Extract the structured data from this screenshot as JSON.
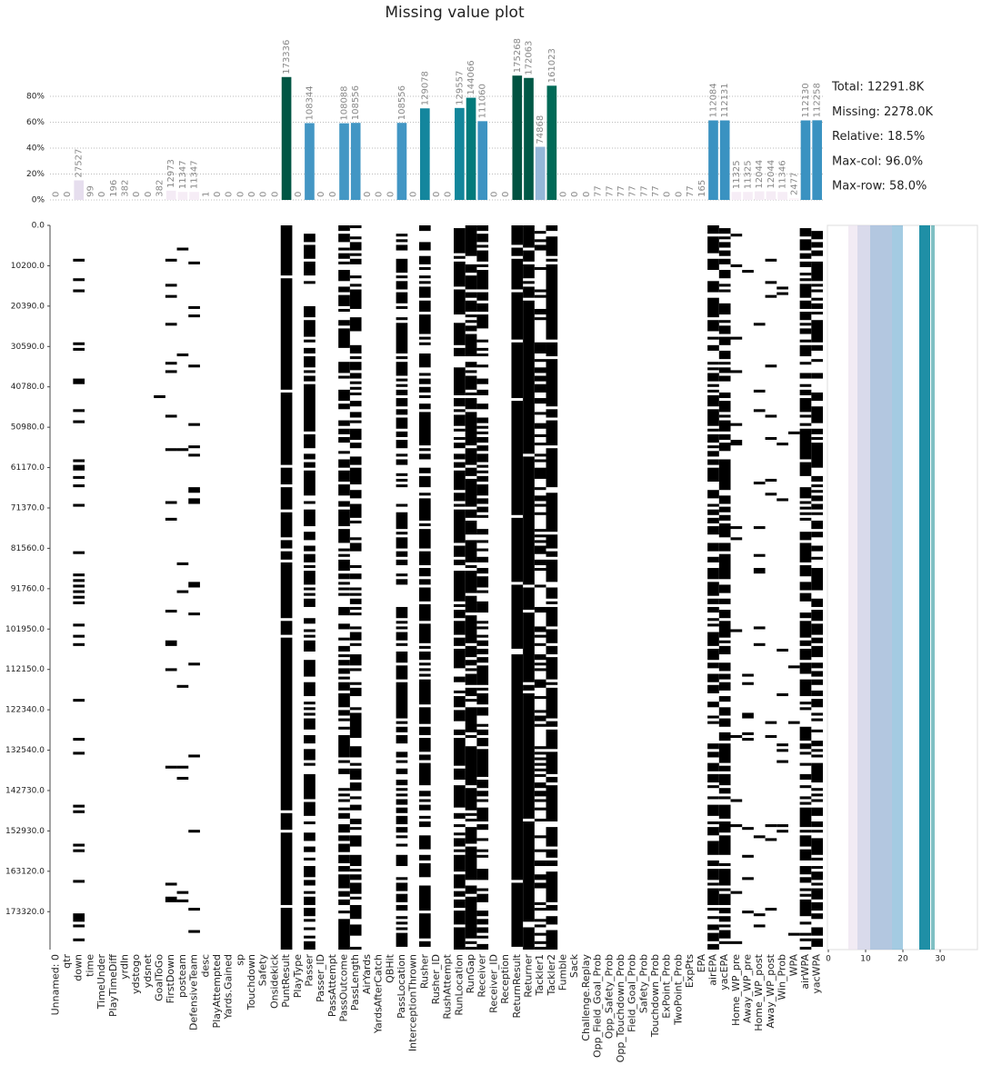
{
  "chart_data": {
    "type": "bar",
    "title": "Missing value plot",
    "categories": [
      "Unnamed: 0",
      "qtr",
      "down",
      "time",
      "TimeUnder",
      "PlayTimeDiff",
      "yrdln",
      "ydstogo",
      "ydsnet",
      "GoalToGo",
      "FirstDown",
      "posteam",
      "DefensiveTeam",
      "desc",
      "PlayAttempted",
      "Yards.Gained",
      "sp",
      "Touchdown",
      "Safety",
      "Onsidekick",
      "PuntResult",
      "PlayType",
      "Passer",
      "Passer_ID",
      "PassAttempt",
      "PassOutcome",
      "PassLength",
      "AirYards",
      "YardsAfterCatch",
      "QBHit",
      "PassLocation",
      "InterceptionThrown",
      "Rusher",
      "Rusher_ID",
      "RushAttempt",
      "RunLocation",
      "RunGap",
      "Receiver",
      "Receiver_ID",
      "Reception",
      "ReturnResult",
      "Returner",
      "Tackler1",
      "Tackler2",
      "Fumble",
      "Sack",
      "Challenge.Replay",
      "Opp_Field_Goal_Prob",
      "Opp_Safety_Prob",
      "Opp_Touchdown_Prob",
      "Field_Goal_Prob",
      "Safety_Prob",
      "Touchdown_Prob",
      "ExPoint_Prob",
      "TwoPoint_Prob",
      "ExpPts",
      "EPA",
      "airEPA",
      "yacEPA",
      "Home_WP_pre",
      "Away_WP_pre",
      "Home_WP_post",
      "Away_WP_post",
      "Win_Prob",
      "WPA",
      "airWPA",
      "yacWPA"
    ],
    "values": [
      0,
      0,
      15.1,
      0.1,
      0,
      0.1,
      0.2,
      0,
      0,
      0.2,
      7.1,
      6.2,
      6.2,
      0,
      0,
      0,
      0,
      0,
      0,
      0,
      94.9,
      0,
      59.3,
      0,
      0,
      59.2,
      59.5,
      0,
      0,
      0,
      59.5,
      0,
      70.7,
      0,
      0,
      71.0,
      78.9,
      60.8,
      0,
      0,
      96.0,
      94.2,
      41.0,
      88.2,
      0,
      0,
      0,
      0,
      0,
      0,
      0,
      0,
      0,
      0,
      0,
      0,
      0.1,
      61.4,
      61.4,
      6.2,
      6.2,
      6.6,
      6.6,
      6.2,
      1.4,
      61.4,
      61.5
    ],
    "value_labels": [
      "0",
      "0",
      "27527",
      "99",
      "0",
      "196",
      "382",
      "0",
      "0",
      "382",
      "12973",
      "11347",
      "11347",
      "1",
      "0",
      "0",
      "0",
      "0",
      "0",
      "0",
      "173336",
      "0",
      "108344",
      "0",
      "0",
      "108088",
      "108556",
      "0",
      "0",
      "0",
      "108556",
      "0",
      "129078",
      "0",
      "0",
      "129557",
      "144066",
      "111060",
      "0",
      "0",
      "175268",
      "172063",
      "74868",
      "161023",
      "0",
      "0",
      "0",
      "77",
      "77",
      "77",
      "77",
      "77",
      "77",
      "0",
      "0",
      "77",
      "165",
      "112084",
      "112131",
      "11325",
      "11325",
      "12044",
      "12044",
      "11346",
      "2477",
      "112130",
      "112258"
    ],
    "color_scale": [
      "#fff7fb",
      "#ece2f0",
      "#d0d1e6",
      "#a6bddb",
      "#67a9cf",
      "#3690c0",
      "#02818a",
      "#016c59",
      "#014636"
    ],
    "ylim": [
      0,
      100
    ],
    "yticks": [
      {
        "value": 0,
        "label": "0%"
      },
      {
        "value": 20,
        "label": "20%"
      },
      {
        "value": 40,
        "label": "40%"
      },
      {
        "value": 60,
        "label": "60%"
      },
      {
        "value": 80,
        "label": "80%"
      }
    ],
    "grid": true,
    "stats": [
      "Total: 12291.8K",
      "Missing: 2278.0K",
      "Relative: 18.5%",
      "Max-col: 96.0%",
      "Max-row: 58.0%"
    ],
    "matrix": {
      "ylim": [
        0,
        182900
      ],
      "yticks": [
        {
          "value": 0,
          "label": "0.0"
        },
        {
          "value": 10200,
          "label": "10200.0"
        },
        {
          "value": 20390,
          "label": "20390.0"
        },
        {
          "value": 30590,
          "label": "30590.0"
        },
        {
          "value": 40780,
          "label": "40780.0"
        },
        {
          "value": 50980,
          "label": "50980.0"
        },
        {
          "value": 61170,
          "label": "61170.0"
        },
        {
          "value": 71370,
          "label": "71370.0"
        },
        {
          "value": 81560,
          "label": "81560.0"
        },
        {
          "value": 91760,
          "label": "91760.0"
        },
        {
          "value": 101950,
          "label": "101950.0"
        },
        {
          "value": 112150,
          "label": "112150.0"
        },
        {
          "value": 122340,
          "label": "122340.0"
        },
        {
          "value": 132540,
          "label": "132540.0"
        },
        {
          "value": 142730,
          "label": "142730.0"
        },
        {
          "value": 152930,
          "label": "152930.0"
        },
        {
          "value": 163120,
          "label": "163120.0"
        },
        {
          "value": 173320,
          "label": "173320.0"
        }
      ]
    },
    "row_distribution": {
      "xlim": [
        0,
        40
      ],
      "xticks": [
        0,
        10,
        20,
        30
      ]
    }
  }
}
